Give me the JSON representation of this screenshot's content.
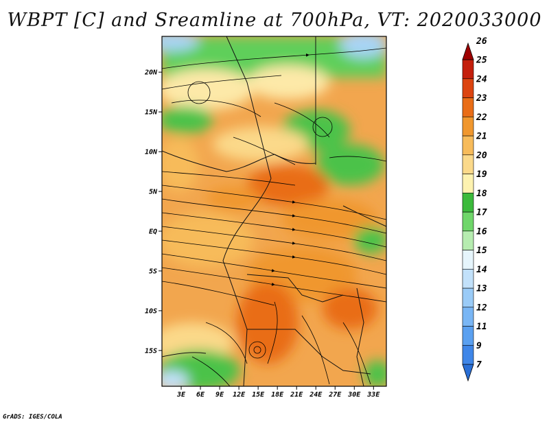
{
  "chart_data": {
    "type": "heatmap",
    "title": "WBPT [C] and Sreamline at 700hPa, VT: 2020033000",
    "variable": "WBPT [C]",
    "level": "700hPa",
    "valid_time": "2020033000",
    "overlay": "streamlines",
    "x_range_lon": [
      0,
      35
    ],
    "y_range_lat": [
      -19.5,
      24.5
    ],
    "x_ticks": [
      {
        "lon": 3,
        "label": "3E"
      },
      {
        "lon": 6,
        "label": "6E"
      },
      {
        "lon": 9,
        "label": "9E"
      },
      {
        "lon": 12,
        "label": "12E"
      },
      {
        "lon": 15,
        "label": "15E"
      },
      {
        "lon": 18,
        "label": "18E"
      },
      {
        "lon": 21,
        "label": "21E"
      },
      {
        "lon": 24,
        "label": "24E"
      },
      {
        "lon": 27,
        "label": "27E"
      },
      {
        "lon": 30,
        "label": "30E"
      },
      {
        "lon": 33,
        "label": "33E"
      }
    ],
    "y_ticks": [
      {
        "lat": 20,
        "label": "20N"
      },
      {
        "lat": 15,
        "label": "15N"
      },
      {
        "lat": 10,
        "label": "10N"
      },
      {
        "lat": 5,
        "label": "5N"
      },
      {
        "lat": 0,
        "label": "EQ"
      },
      {
        "lat": -5,
        "label": "5S"
      },
      {
        "lat": -10,
        "label": "10S"
      },
      {
        "lat": -15,
        "label": "15S"
      }
    ],
    "colorbar": {
      "levels": [
        "7",
        "9",
        "11",
        "12",
        "13",
        "14",
        "15",
        "16",
        "17",
        "18",
        "19",
        "20",
        "21",
        "22",
        "23",
        "24",
        "25",
        "26"
      ],
      "colors": [
        "#2a6fd6",
        "#3f86e8",
        "#5aa0f0",
        "#79b6f5",
        "#9acbf7",
        "#c2e1fa",
        "#e6f5fc",
        "#b6ecb0",
        "#6fd66a",
        "#3cba3c",
        "#fdf2b0",
        "#fbd98a",
        "#f7bb5a",
        "#f0972e",
        "#e96d17",
        "#dc4410",
        "#c41f0c",
        "#9e0000"
      ]
    }
  },
  "credit": "GrADS: IGES/COLA"
}
